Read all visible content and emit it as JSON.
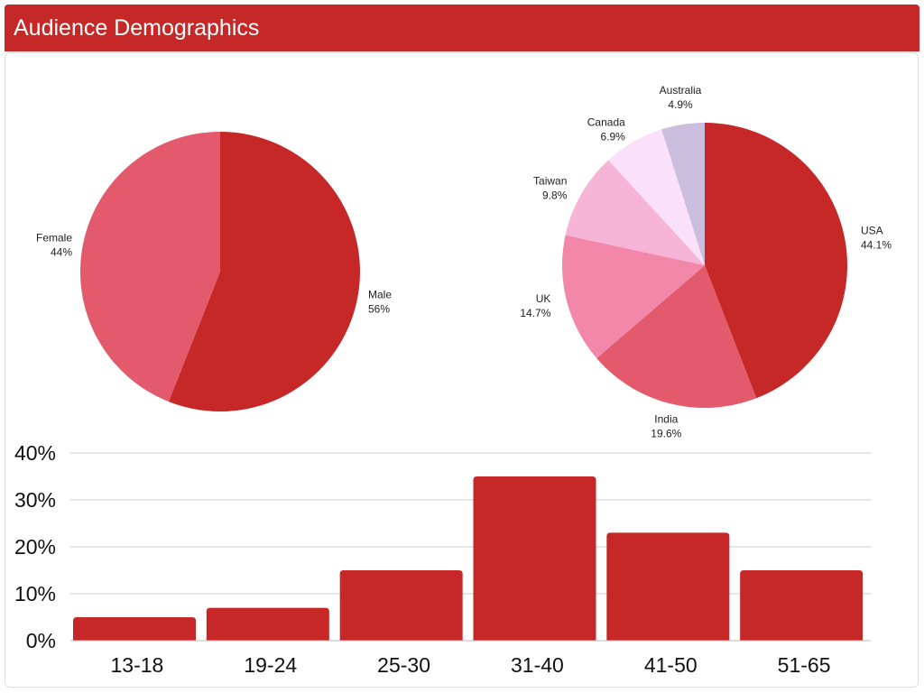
{
  "header": {
    "title": "Audience Demographics"
  },
  "colors": {
    "header_bg": "#c62828",
    "bar": "#c62828",
    "gridline": "#cccccc"
  },
  "chart_data": [
    {
      "type": "pie",
      "slices": [
        {
          "label": "Male",
          "value": 56,
          "value_label": "56%",
          "color": "#c62828"
        },
        {
          "label": "Female",
          "value": 44,
          "value_label": "44%",
          "color": "#e35a6d"
        }
      ],
      "start_angle_deg": 0,
      "direction": "clockwise"
    },
    {
      "type": "pie",
      "slices": [
        {
          "label": "USA",
          "value": 44.1,
          "value_label": "44.1%",
          "color": "#c62828"
        },
        {
          "label": "India",
          "value": 19.6,
          "value_label": "19.6%",
          "color": "#e35a6d"
        },
        {
          "label": "UK",
          "value": 14.7,
          "value_label": "14.7%",
          "color": "#f287a9"
        },
        {
          "label": "Taiwan",
          "value": 9.8,
          "value_label": "9.8%",
          "color": "#f6b4d6"
        },
        {
          "label": "Canada",
          "value": 6.9,
          "value_label": "6.9%",
          "color": "#fbe0fb"
        },
        {
          "label": "Australia",
          "value": 4.9,
          "value_label": "4.9%",
          "color": "#cbbedf"
        }
      ],
      "start_angle_deg": 0,
      "direction": "clockwise"
    },
    {
      "type": "bar",
      "categories": [
        "13-18",
        "19-24",
        "25-30",
        "31-40",
        "41-50",
        "51-65"
      ],
      "values": [
        5,
        7,
        15,
        35,
        23,
        15
      ],
      "ylim": [
        0,
        40
      ],
      "yticks": [
        0,
        10,
        20,
        30,
        40
      ],
      "ytick_labels": [
        "0%",
        "10%",
        "20%",
        "30%",
        "40%"
      ],
      "grid": true,
      "xlabel": "",
      "ylabel": ""
    }
  ]
}
